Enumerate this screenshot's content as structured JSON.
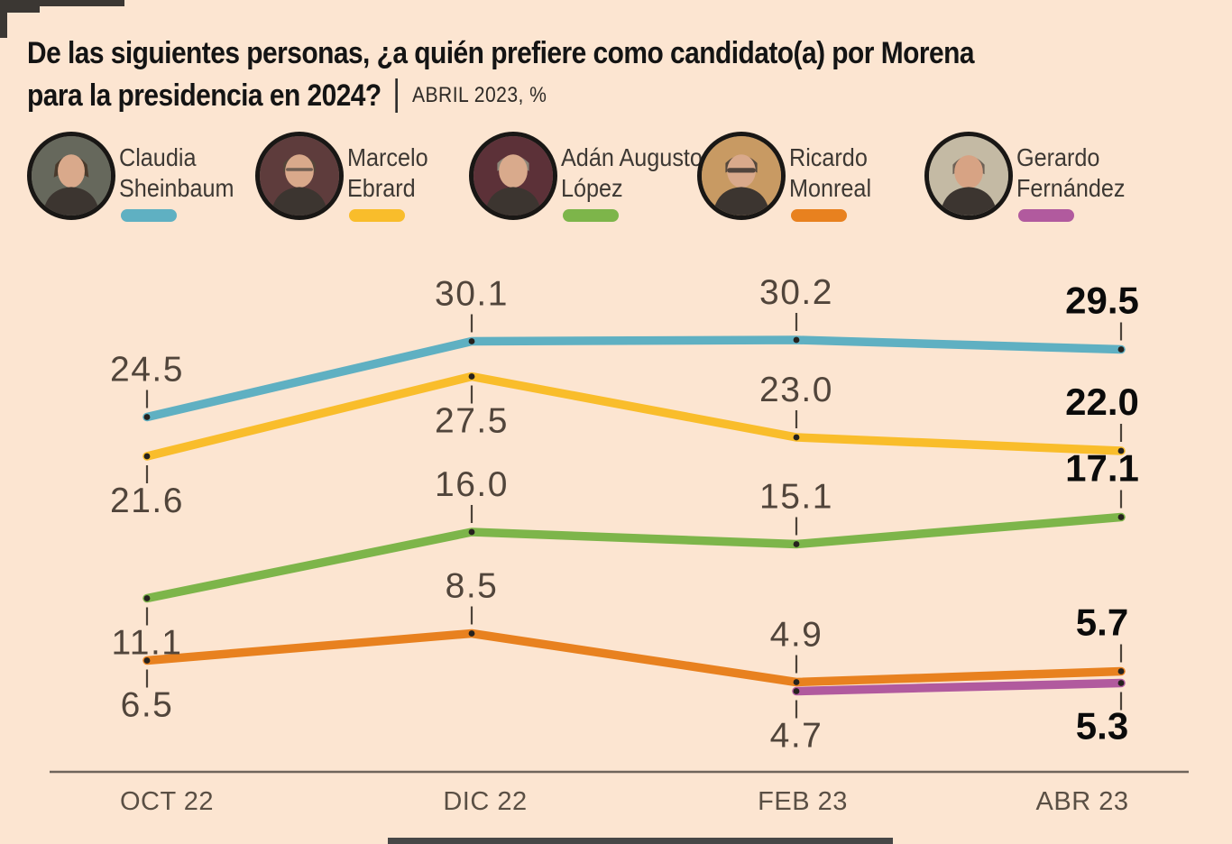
{
  "header": {
    "title_line1": "De las siguientes personas, ¿a quién prefiere como candidato(a) por Morena",
    "title_line2": "para la presidencia en 2024?",
    "subtitle": "ABRIL 2023, %"
  },
  "legend": [
    {
      "name_line1": "Claudia",
      "name_line2": "Sheinbaum",
      "color": "#5fb0c2",
      "avatar_bg": "#66685c"
    },
    {
      "name_line1": "Marcelo",
      "name_line2": "Ebrard",
      "color": "#f9bd2b",
      "avatar_bg": "#5e3c3c"
    },
    {
      "name_line1": "Adán Augusto",
      "name_line2": "López",
      "color": "#7db54a",
      "avatar_bg": "#5c3138"
    },
    {
      "name_line1": "Ricardo",
      "name_line2": "Monreal",
      "color": "#e8811f",
      "avatar_bg": "#c89a63"
    },
    {
      "name_line1": "Gerardo",
      "name_line2": "Fernández",
      "color": "#b15a9e",
      "avatar_bg": "#c4baa4"
    }
  ],
  "chart_data": {
    "type": "line",
    "title": "De las siguientes personas, ¿a quién prefiere como candidato(a) por Morena para la presidencia en 2024?",
    "subtitle": "ABRIL 2023, %",
    "unit": "%",
    "categories": [
      "OCT 22",
      "DIC 22",
      "FEB 23",
      "ABR 23"
    ],
    "series": [
      {
        "name": "Claudia Sheinbaum",
        "color": "#5fb0c2",
        "values": [
          24.5,
          30.1,
          30.2,
          29.5
        ]
      },
      {
        "name": "Marcelo Ebrard",
        "color": "#f9bd2b",
        "values": [
          21.6,
          27.5,
          23.0,
          22.0
        ]
      },
      {
        "name": "Adán Augusto López",
        "color": "#7db54a",
        "values": [
          11.1,
          16.0,
          15.1,
          17.1
        ]
      },
      {
        "name": "Ricardo Monreal",
        "color": "#e8811f",
        "values": [
          6.5,
          8.5,
          4.9,
          5.7
        ]
      },
      {
        "name": "Gerardo Fernández",
        "color": "#b15a9e",
        "values": [
          null,
          null,
          4.7,
          5.3
        ]
      }
    ],
    "ylim": [
      0,
      35
    ],
    "grid": false,
    "legend_position": "top",
    "data_labels": true,
    "last_column_labels_bold": true
  },
  "colors": {
    "background": "#fce5d1",
    "axis_line": "#6f655b",
    "label_text": "#51453b",
    "final_label_text": "#0b0b0b",
    "axis_label_text": "#5a4f44"
  }
}
